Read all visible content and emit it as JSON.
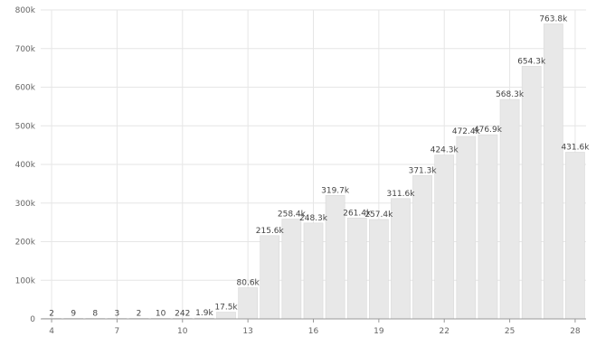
{
  "chart_data": {
    "type": "bar",
    "x": [
      4,
      5,
      6,
      7,
      8,
      9,
      10,
      11,
      12,
      13,
      14,
      15,
      16,
      17,
      18,
      19,
      20,
      21,
      22,
      23,
      24,
      25,
      26,
      27,
      28
    ],
    "values": [
      2,
      9,
      8,
      3,
      2,
      10,
      242,
      1900,
      17500,
      80600,
      215600,
      258400,
      248300,
      319700,
      261400,
      257400,
      311600,
      371300,
      424300,
      472400,
      476900,
      568300,
      654300,
      763800,
      431600
    ],
    "data_labels": [
      "2",
      "9",
      "8",
      "3",
      "2",
      "10",
      "242",
      "1.9k",
      "17.5k",
      "80.6k",
      "215.6k",
      "258.4k",
      "248.3k",
      "319.7k",
      "261.4k",
      "257.4k",
      "311.6k",
      "371.3k",
      "424.3k",
      "472.4k",
      "476.9k",
      "568.3k",
      "654.3k",
      "763.8k",
      "431.6k"
    ],
    "x_ticks": [
      "4",
      "7",
      "10",
      "13",
      "16",
      "19",
      "22",
      "25",
      "28"
    ],
    "y_ticks": [
      "0",
      "100k",
      "200k",
      "300k",
      "400k",
      "500k",
      "600k",
      "700k",
      "800k"
    ],
    "ylim": [
      0,
      800000
    ],
    "grid": true,
    "title": "",
    "xlabel": "",
    "ylabel": "",
    "colors": {
      "bar": "#e8e8e8",
      "grid": "#e6e6e6"
    }
  }
}
